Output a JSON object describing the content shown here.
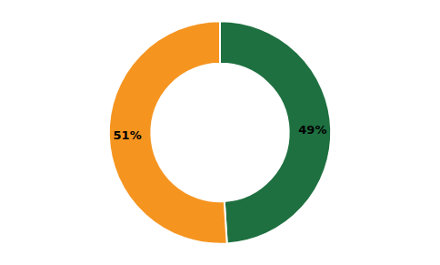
{
  "chart_data": {
    "type": "donut",
    "values": [
      49,
      51
    ],
    "value_labels": [
      "49%",
      "51%"
    ],
    "data_labels": true,
    "colors": [
      "#1e7040",
      "#f59520"
    ]
  }
}
